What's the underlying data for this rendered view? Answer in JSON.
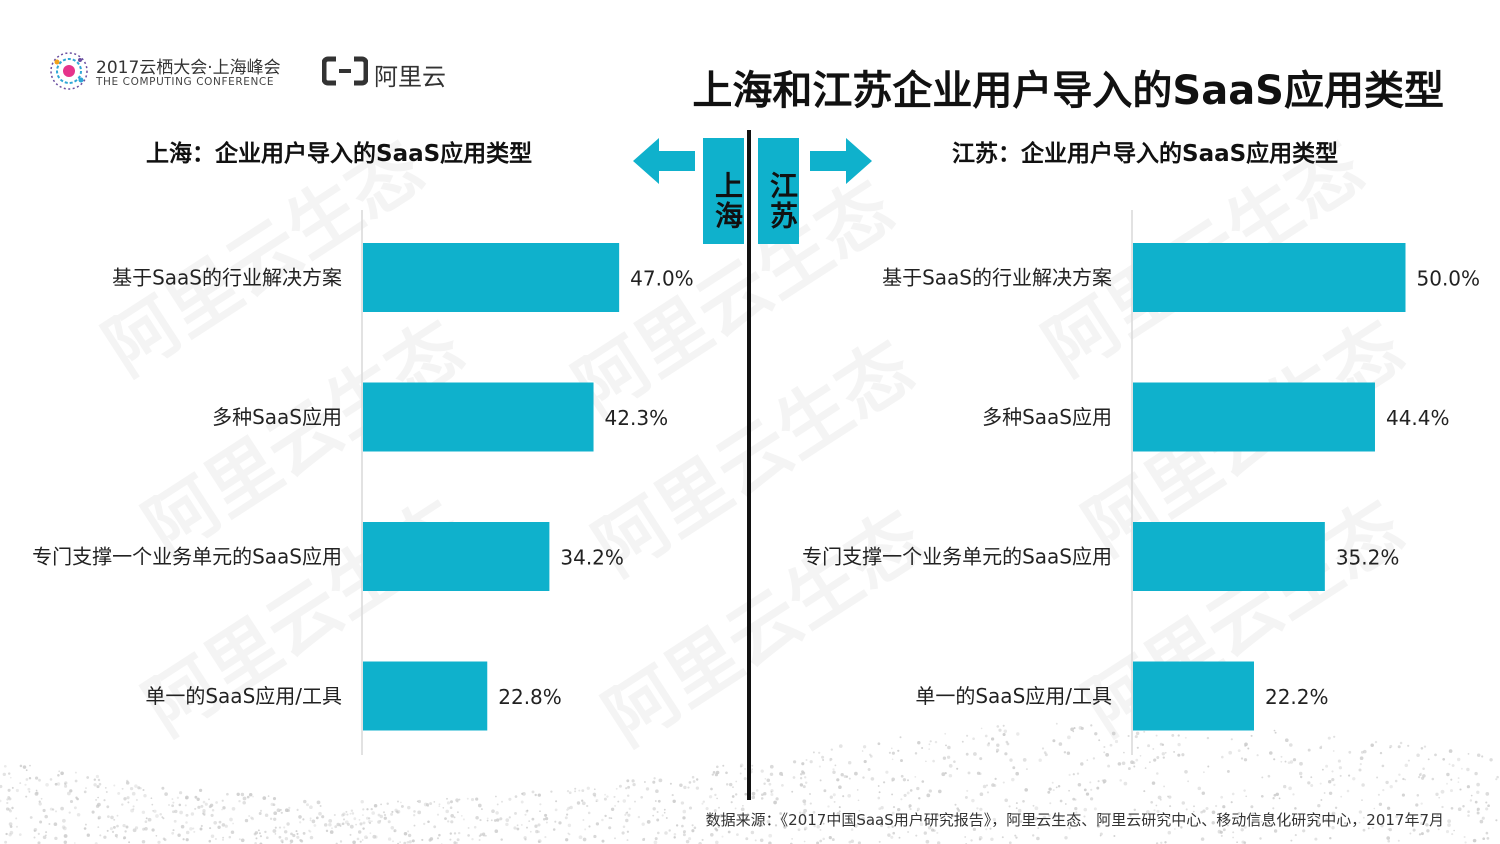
{
  "header": {
    "conference_title": "2017云栖大会·上海峰会",
    "conference_subtitle": "THE COMPUTING CONFERENCE",
    "brand": "阿里云"
  },
  "main_title": "上海和江苏企业用户导入的SaaS应用类型",
  "regions": {
    "left": "上海",
    "right": "江苏"
  },
  "watermark_text": "阿里云生态",
  "chart_data": [
    {
      "type": "bar",
      "orientation": "horizontal",
      "title": "上海：企业用户导入的SaaS应用类型",
      "categories": [
        "基于SaaS的行业解决方案",
        "多种SaaS应用",
        "专门支撑一个业务单元的SaaS应用",
        "单一的SaaS应用/工具"
      ],
      "values": [
        47.0,
        42.3,
        34.2,
        22.8
      ],
      "data_labels": [
        "47.0%",
        "42.3%",
        "34.2%",
        "22.8%"
      ],
      "xlim": [
        0,
        100
      ],
      "color": "#0fb1cc"
    },
    {
      "type": "bar",
      "orientation": "horizontal",
      "title": "江苏：企业用户导入的SaaS应用类型",
      "categories": [
        "基于SaaS的行业解决方案",
        "多种SaaS应用",
        "专门支撑一个业务单元的SaaS应用",
        "单一的SaaS应用/工具"
      ],
      "values": [
        50.0,
        44.4,
        35.2,
        22.2
      ],
      "data_labels": [
        "50.0%",
        "44.4%",
        "35.2%",
        "22.2%"
      ],
      "xlim": [
        0,
        100
      ],
      "color": "#0fb1cc"
    }
  ],
  "source": "数据来源：《2017中国SaaS用户研究报告》，阿里云生态、阿里云研究中心、移动信息化研究中心，2017年7月"
}
